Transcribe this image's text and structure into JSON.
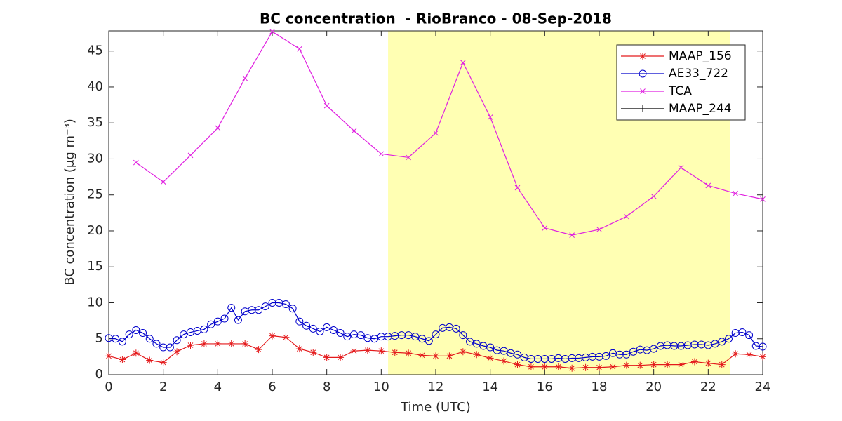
{
  "chart_data": {
    "type": "line",
    "title": "BC concentration  - RioBranco - 08-Sep-2018",
    "xlabel": "Time (UTC)",
    "ylabel": "BC concentration (μg m⁻³)",
    "xlim": [
      0,
      24
    ],
    "xticks": [
      0,
      2,
      4,
      6,
      8,
      10,
      12,
      14,
      16,
      18,
      20,
      22,
      24
    ],
    "ylim": [
      0,
      47.8
    ],
    "yticks": [
      0,
      5,
      10,
      15,
      20,
      25,
      30,
      35,
      40,
      45
    ],
    "highlight_x": [
      10.25,
      22.8
    ],
    "highlight_color": "#ffffb3",
    "legend": "upper right",
    "series": [
      {
        "name": "MAAP_156",
        "color": "#e41a1c",
        "marker": "asterisk",
        "x": [
          0,
          0.5,
          1,
          1.5,
          2,
          2.5,
          3,
          3.5,
          4,
          4.5,
          5,
          5.5,
          6,
          6.5,
          7,
          7.5,
          8,
          8.5,
          9,
          9.5,
          10,
          10.5,
          11,
          11.5,
          12,
          12.5,
          13,
          13.5,
          14,
          14.5,
          15,
          15.5,
          16,
          16.5,
          17,
          17.5,
          18,
          18.5,
          19,
          19.5,
          20,
          20.5,
          21,
          21.5,
          22,
          22.5,
          23,
          23.5,
          24
        ],
        "values": [
          2.6,
          2.1,
          3.0,
          2.0,
          1.7,
          3.2,
          4.1,
          4.3,
          4.3,
          4.3,
          4.3,
          3.5,
          5.4,
          5.2,
          3.6,
          3.1,
          2.4,
          2.4,
          3.3,
          3.4,
          3.3,
          3.1,
          3.0,
          2.7,
          2.6,
          2.6,
          3.2,
          2.8,
          2.3,
          1.9,
          1.4,
          1.1,
          1.1,
          1.1,
          0.9,
          1.0,
          1.0,
          1.1,
          1.3,
          1.3,
          1.4,
          1.4,
          1.4,
          1.8,
          1.6,
          1.4,
          2.9,
          2.8,
          2.5
        ]
      },
      {
        "name": "AE33_722",
        "color": "#0000cc",
        "marker": "circle",
        "x": [
          0,
          0.25,
          0.5,
          0.75,
          1,
          1.25,
          1.5,
          1.75,
          2,
          2.25,
          2.5,
          2.75,
          3,
          3.25,
          3.5,
          3.75,
          4,
          4.25,
          4.5,
          4.75,
          5,
          5.25,
          5.5,
          5.75,
          6,
          6.25,
          6.5,
          6.75,
          7,
          7.25,
          7.5,
          7.75,
          8,
          8.25,
          8.5,
          8.75,
          9,
          9.25,
          9.5,
          9.75,
          10,
          10.25,
          10.5,
          10.75,
          11,
          11.25,
          11.5,
          11.75,
          12,
          12.25,
          12.5,
          12.75,
          13,
          13.25,
          13.5,
          13.75,
          14,
          14.25,
          14.5,
          14.75,
          15,
          15.25,
          15.5,
          15.75,
          16,
          16.25,
          16.5,
          16.75,
          17,
          17.25,
          17.5,
          17.75,
          18,
          18.25,
          18.5,
          18.75,
          19,
          19.25,
          19.5,
          19.75,
          20,
          20.25,
          20.5,
          20.75,
          21,
          21.25,
          21.5,
          21.75,
          22,
          22.25,
          22.5,
          22.75,
          23,
          23.25,
          23.5,
          23.75,
          24
        ],
        "values": [
          5.1,
          5.0,
          4.6,
          5.6,
          6.2,
          5.8,
          5.0,
          4.3,
          3.8,
          3.8,
          4.8,
          5.6,
          5.9,
          6.1,
          6.3,
          7.0,
          7.4,
          7.8,
          9.3,
          7.6,
          8.8,
          9.0,
          9.0,
          9.5,
          10.0,
          10.0,
          9.8,
          9.2,
          7.4,
          6.8,
          6.4,
          6.0,
          6.6,
          6.2,
          5.8,
          5.3,
          5.6,
          5.5,
          5.1,
          5.0,
          5.3,
          5.3,
          5.4,
          5.5,
          5.5,
          5.3,
          5.0,
          4.7,
          5.6,
          6.5,
          6.6,
          6.4,
          5.5,
          4.6,
          4.3,
          4.0,
          3.8,
          3.4,
          3.3,
          3.0,
          2.8,
          2.4,
          2.2,
          2.2,
          2.2,
          2.2,
          2.3,
          2.2,
          2.3,
          2.3,
          2.4,
          2.5,
          2.5,
          2.6,
          3.0,
          2.8,
          2.8,
          3.2,
          3.5,
          3.4,
          3.6,
          4.0,
          4.1,
          4.0,
          4.0,
          4.1,
          4.2,
          4.2,
          4.1,
          4.3,
          4.6,
          5.0,
          5.8,
          5.9,
          5.5,
          4.0,
          3.9
        ]
      },
      {
        "name": "TCA",
        "color": "#e020e0",
        "marker": "x",
        "x": [
          1,
          2,
          3,
          4,
          5,
          6,
          7,
          8,
          9,
          10,
          11,
          12,
          13,
          14,
          15,
          16,
          17,
          18,
          19,
          20,
          21,
          22,
          23,
          24
        ],
        "values": [
          29.5,
          26.8,
          30.5,
          34.3,
          41.2,
          47.7,
          45.3,
          37.4,
          33.9,
          30.7,
          30.2,
          33.6,
          43.4,
          35.8,
          26.0,
          20.4,
          19.4,
          20.2,
          22.0,
          24.8,
          28.8,
          26.3,
          25.2,
          24.4
        ]
      },
      {
        "name": "MAAP_244",
        "color": "#000000",
        "marker": "plus",
        "x": [],
        "values": []
      }
    ]
  }
}
